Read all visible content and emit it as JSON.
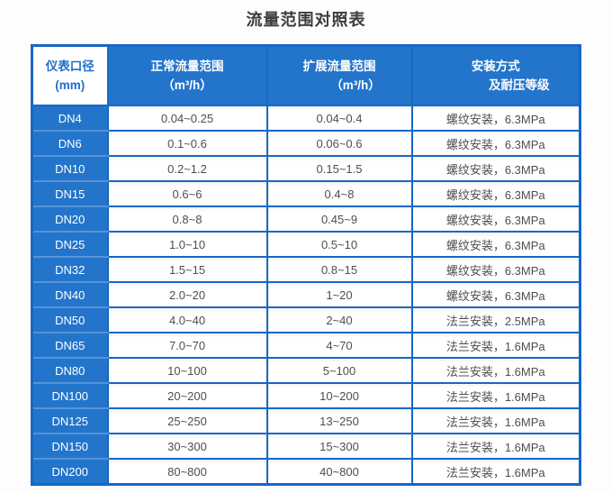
{
  "page": {
    "title": "流量范围对照表"
  },
  "theme": {
    "border_blue": "#1767c6",
    "cell_blue": "#2375cb",
    "sep_light": "#5693d8",
    "corner_blue": "#2070c8",
    "text_dark": "#4e4e4e",
    "title_color": "#3c3c3c"
  },
  "table": {
    "headers": {
      "col1": {
        "line1": "仪表口径",
        "line2": "(mm)"
      },
      "col2": {
        "line1": "正常流量范围",
        "line2": "（m³/h）"
      },
      "col3": {
        "line1": "扩展流量范围",
        "line2": "（m³/h）"
      },
      "col4": {
        "line1": "安装方式",
        "line2": "及耐压等级"
      }
    },
    "rows": [
      {
        "dn": "DN4",
        "normal": "0.04~0.25",
        "extended": "0.04~0.4",
        "install": "螺纹安装，6.3MPa"
      },
      {
        "dn": "DN6",
        "normal": "0.1~0.6",
        "extended": "0.06~0.6",
        "install": "螺纹安装，6.3MPa"
      },
      {
        "dn": "DN10",
        "normal": "0.2~1.2",
        "extended": "0.15~1.5",
        "install": "螺纹安装，6.3MPa"
      },
      {
        "dn": "DN15",
        "normal": "0.6~6",
        "extended": "0.4~8",
        "install": "螺纹安装，6.3MPa"
      },
      {
        "dn": "DN20",
        "normal": "0.8~8",
        "extended": "0.45~9",
        "install": "螺纹安装，6.3MPa"
      },
      {
        "dn": "DN25",
        "normal": "1.0~10",
        "extended": "0.5~10",
        "install": "螺纹安装，6.3MPa"
      },
      {
        "dn": "DN32",
        "normal": "1.5~15",
        "extended": "0.8~15",
        "install": "螺纹安装，6.3MPa"
      },
      {
        "dn": "DN40",
        "normal": "2.0~20",
        "extended": "1~20",
        "install": "螺纹安装，6.3MPa"
      },
      {
        "dn": "DN50",
        "normal": "4.0~40",
        "extended": "2~40",
        "install": "法兰安装，2.5MPa"
      },
      {
        "dn": "DN65",
        "normal": "7.0~70",
        "extended": "4~70",
        "install": "法兰安装，1.6MPa"
      },
      {
        "dn": "DN80",
        "normal": "10~100",
        "extended": "5~100",
        "install": "法兰安装，1.6MPa"
      },
      {
        "dn": "DN100",
        "normal": "20~200",
        "extended": "10~200",
        "install": "法兰安装，1.6MPa"
      },
      {
        "dn": "DN125",
        "normal": "25~250",
        "extended": "13~250",
        "install": "法兰安装，1.6MPa"
      },
      {
        "dn": "DN150",
        "normal": "30~300",
        "extended": "15~300",
        "install": "法兰安装，1.6MPa"
      },
      {
        "dn": "DN200",
        "normal": "80~800",
        "extended": "40~800",
        "install": "法兰安装，1.6MPa"
      }
    ]
  }
}
